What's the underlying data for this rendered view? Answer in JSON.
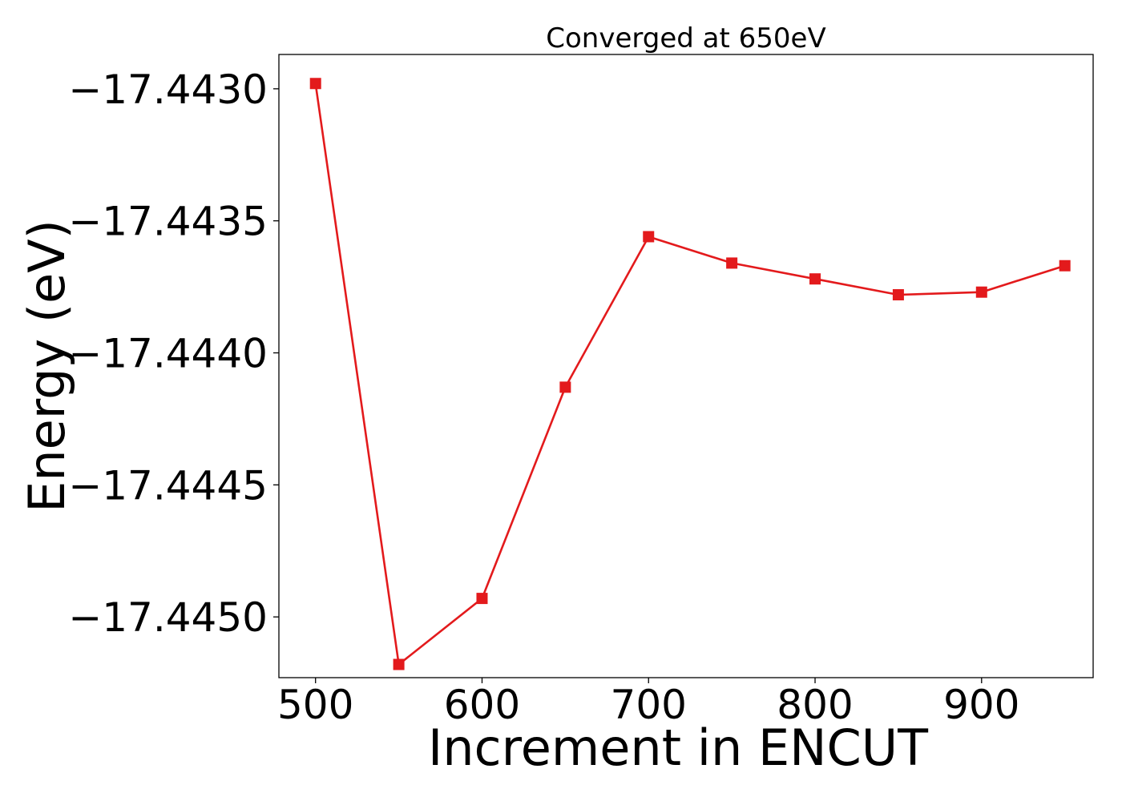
{
  "chart_data": {
    "type": "line",
    "title": "Converged at 650eV",
    "xlabel": "Increment in ENCUT",
    "ylabel": "Energy (eV)",
    "x": [
      500,
      550,
      600,
      650,
      700,
      750,
      800,
      850,
      900,
      950
    ],
    "series": [
      {
        "values": [
          -17.44298,
          -17.44518,
          -17.44493,
          -17.44413,
          -17.44356,
          -17.44366,
          -17.44372,
          -17.44378,
          -17.44377,
          -17.44367
        ],
        "color": "#e31a1c",
        "marker": "square"
      }
    ],
    "xticks": [
      500,
      600,
      700,
      800,
      900
    ],
    "xtick_labels": [
      "500",
      "600",
      "700",
      "800",
      "900"
    ],
    "yticks": [
      -17.443,
      -17.4435,
      -17.444,
      -17.4445,
      -17.445
    ],
    "ytick_labels": [
      "−17.4430",
      "−17.4435",
      "−17.4440",
      "−17.4445",
      "−17.4450"
    ],
    "xlim": [
      478,
      967
    ],
    "ylim": [
      -17.44523,
      -17.44287
    ],
    "grid": false,
    "legend": "none"
  }
}
